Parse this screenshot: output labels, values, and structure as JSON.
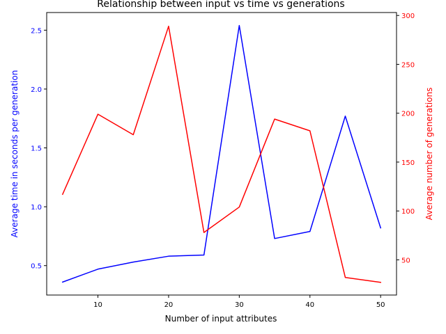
{
  "chart_data": {
    "type": "line",
    "title": "Relationship between input vs time vs generations",
    "xlabel": "Number of input attributes",
    "ylabel_left": "Average time in seconds per generation",
    "ylabel_right": "Average number of generations",
    "x": [
      5,
      10,
      15,
      20,
      25,
      30,
      35,
      40,
      45,
      50
    ],
    "xlim": [
      2.75,
      52.25
    ],
    "xticks": [
      10,
      20,
      30,
      40,
      50
    ],
    "ylim_left": [
      0.25,
      2.65
    ],
    "yticks_left": [
      0.5,
      1.0,
      1.5,
      2.0,
      2.5
    ],
    "ylim_right": [
      14,
      303
    ],
    "yticks_right": [
      50,
      100,
      150,
      200,
      250,
      300
    ],
    "grid": false,
    "series": [
      {
        "axis": "left",
        "color": "#0000ff",
        "values": [
          0.36,
          0.47,
          0.53,
          0.58,
          0.59,
          2.54,
          0.73,
          0.79,
          1.77,
          0.82
        ]
      },
      {
        "axis": "right",
        "color": "#ff0000",
        "values": [
          117,
          199,
          178,
          289,
          78,
          104,
          194,
          182,
          32,
          27
        ]
      }
    ]
  }
}
